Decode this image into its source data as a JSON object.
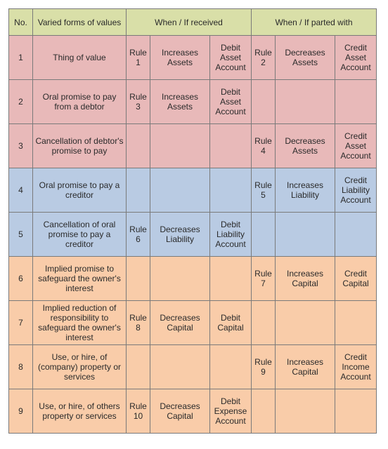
{
  "header": {
    "no": "No.",
    "forms": "Varied forms of values",
    "received": "When / If received",
    "parted": "When / If parted with"
  },
  "rows": [
    {
      "color": "pink",
      "no": "1",
      "form": "Thing of value",
      "r_rule": "Rule 1",
      "r_effect": "Increases Assets",
      "r_account": "Debit Asset Account",
      "p_rule": "Rule 2",
      "p_effect": "Decreases Assets",
      "p_account": "Credit Asset Account"
    },
    {
      "color": "pink",
      "no": "2",
      "form": "Oral promise to pay from a debtor",
      "r_rule": "Rule 3",
      "r_effect": "Increases Assets",
      "r_account": "Debit Asset Account",
      "p_rule": "",
      "p_effect": "",
      "p_account": ""
    },
    {
      "color": "pink",
      "no": "3",
      "form": "Cancellation of debtor's promise to pay",
      "r_rule": "",
      "r_effect": "",
      "r_account": "",
      "p_rule": "Rule 4",
      "p_effect": "Decreases Assets",
      "p_account": "Credit Asset Account"
    },
    {
      "color": "blue",
      "no": "4",
      "form": "Oral promise to pay a creditor",
      "r_rule": "",
      "r_effect": "",
      "r_account": "",
      "p_rule": "Rule 5",
      "p_effect": "Increases Liability",
      "p_account": "Credit Liability Account"
    },
    {
      "color": "blue",
      "no": "5",
      "form": "Cancellation of oral promise to pay a creditor",
      "r_rule": "Rule 6",
      "r_effect": "Decreases Liability",
      "r_account": "Debit Liability Account",
      "p_rule": "",
      "p_effect": "",
      "p_account": ""
    },
    {
      "color": "peach",
      "no": "6",
      "form": "Implied promise to safeguard the owner's interest",
      "r_rule": "",
      "r_effect": "",
      "r_account": "",
      "p_rule": "Rule 7",
      "p_effect": "Increases Capital",
      "p_account": "Credit Capital"
    },
    {
      "color": "peach",
      "no": "7",
      "form": "Implied reduction of responsibility to safeguard the owner's interest",
      "r_rule": "Rule 8",
      "r_effect": "Decreases Capital",
      "r_account": "Debit Capital",
      "p_rule": "",
      "p_effect": "",
      "p_account": ""
    },
    {
      "color": "peach",
      "no": "8",
      "form": "Use, or hire, of (company) property or services",
      "r_rule": "",
      "r_effect": "",
      "r_account": "",
      "p_rule": "Rule 9",
      "p_effect": "Increases Capital",
      "p_account": "Credit Income Account"
    },
    {
      "color": "peach",
      "no": "9",
      "form": "Use, or hire, of others property or services",
      "r_rule": "Rule 10",
      "r_effect": "Decreases Capital",
      "r_account": "Debit Expense Account",
      "p_rule": "",
      "p_effect": "",
      "p_account": ""
    }
  ],
  "colors": {
    "header": "#d9dfa8",
    "pink": "#e8b9b9",
    "blue": "#b9cbe3",
    "peach": "#f9cca9",
    "border": "#7a7a7a"
  }
}
